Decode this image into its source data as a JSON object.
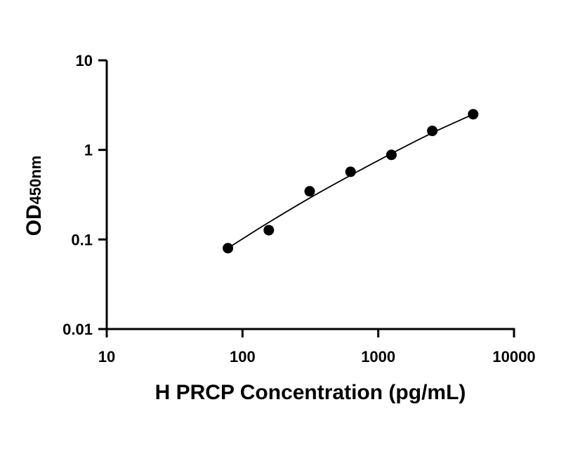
{
  "chart_data": {
    "type": "scatter",
    "xlabel": "H PRCP Concentration (pg/mL)",
    "ylabel_main": "OD",
    "ylabel_sub": "450nm",
    "x_scale": "log",
    "y_scale": "log",
    "xlim": [
      10,
      10000
    ],
    "ylim": [
      0.01,
      10
    ],
    "x_ticks": [
      10,
      100,
      1000,
      10000
    ],
    "x_tick_labels": [
      "10",
      "100",
      "1000",
      "10000"
    ],
    "y_ticks": [
      0.01,
      0.1,
      1,
      10
    ],
    "y_tick_labels": [
      "0.01",
      "0.1",
      "1",
      "10"
    ],
    "grid": false,
    "series": [
      {
        "points": [
          {
            "x": 78.125,
            "y": 0.08
          },
          {
            "x": 156.25,
            "y": 0.127
          },
          {
            "x": 312.5,
            "y": 0.345
          },
          {
            "x": 625,
            "y": 0.57
          },
          {
            "x": 1250,
            "y": 0.88
          },
          {
            "x": 2500,
            "y": 1.63
          },
          {
            "x": 5000,
            "y": 2.5
          }
        ],
        "fit_curve": [
          {
            "x": 78.125,
            "y": 0.08
          },
          {
            "x": 156.25,
            "y": 0.155
          },
          {
            "x": 312.5,
            "y": 0.29
          },
          {
            "x": 625,
            "y": 0.52
          },
          {
            "x": 1250,
            "y": 0.91
          },
          {
            "x": 2500,
            "y": 1.55
          },
          {
            "x": 5000,
            "y": 2.5
          }
        ],
        "color": "#000000"
      }
    ]
  }
}
